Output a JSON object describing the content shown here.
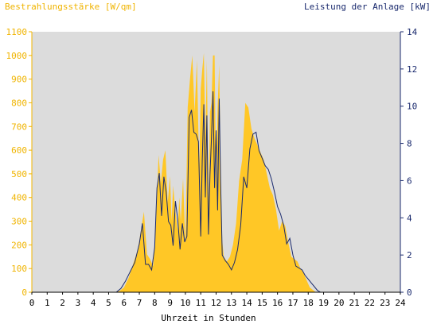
{
  "chart_data": {
    "type": "area",
    "left_axis_label": "Bestrahlungsstärke [W/qm]",
    "right_axis_label": "Leistung der Anlage [kW]",
    "xlabel": "Uhrzeit in Stunden",
    "x_ticks": [
      "0",
      "1",
      "2",
      "3",
      "4",
      "5",
      "6",
      "7",
      "8",
      "9",
      "10",
      "11",
      "12",
      "13",
      "14",
      "15",
      "16",
      "17",
      "18",
      "19",
      "20",
      "21",
      "22",
      "23",
      "24"
    ],
    "left_ticks": [
      "0",
      "100",
      "200",
      "300",
      "400",
      "500",
      "600",
      "700",
      "800",
      "900",
      "1000",
      "1100"
    ],
    "right_ticks": [
      "0",
      "2",
      "4",
      "6",
      "8",
      "10",
      "12",
      "14"
    ],
    "xlim": [
      0,
      24
    ],
    "ylim_left": [
      0,
      1100
    ],
    "ylim_right": [
      0,
      14
    ],
    "grid": false,
    "colors": {
      "plot_background": "#dcdcdc",
      "irradiance_fill": "#ffc726",
      "power_line": "#1a2a6e",
      "left_axis": "#f0b400",
      "right_axis": "#1a2a6e"
    },
    "series": [
      {
        "name": "Bestrahlungsstärke [W/qm]",
        "axis": "left",
        "style": "area",
        "x": [
          0,
          5.4,
          5.7,
          6.0,
          6.3,
          6.6,
          6.9,
          7.1,
          7.3,
          7.5,
          7.7,
          7.9,
          8.1,
          8.25,
          8.4,
          8.55,
          8.7,
          8.85,
          9.0,
          9.1,
          9.2,
          9.35,
          9.5,
          9.6,
          9.7,
          9.85,
          10.0,
          10.15,
          10.3,
          10.45,
          10.6,
          10.75,
          10.9,
          11.0,
          11.1,
          11.2,
          11.3,
          11.4,
          11.5,
          11.6,
          11.7,
          11.8,
          11.9,
          12.0,
          12.1,
          12.2,
          12.3,
          12.4,
          12.5,
          12.7,
          12.9,
          13.1,
          13.3,
          13.5,
          13.7,
          13.9,
          14.1,
          14.3,
          14.5,
          14.7,
          14.9,
          15.1,
          15.3,
          15.5,
          15.7,
          15.9,
          16.1,
          16.3,
          16.5,
          16.7,
          16.9,
          17.1,
          17.3,
          17.5,
          17.7,
          17.9,
          18.1,
          18.3,
          18.5,
          18.7,
          18.9,
          19.1,
          19.3,
          19.5,
          19.7,
          19.9,
          20.1,
          20.3,
          20.5,
          24
        ],
        "y": [
          0,
          0,
          5,
          20,
          60,
          120,
          180,
          260,
          340,
          160,
          140,
          110,
          320,
          580,
          460,
          560,
          600,
          380,
          490,
          300,
          450,
          340,
          260,
          400,
          300,
          480,
          200,
          780,
          900,
          1000,
          760,
          980,
          500,
          860,
          940,
          1010,
          650,
          980,
          360,
          760,
          800,
          1000,
          1000,
          450,
          780,
          960,
          500,
          220,
          150,
          130,
          150,
          200,
          290,
          470,
          560,
          800,
          780,
          690,
          650,
          620,
          590,
          560,
          500,
          440,
          410,
          350,
          260,
          300,
          280,
          210,
          150,
          140,
          130,
          100,
          80,
          50,
          20,
          10,
          0,
          0,
          0,
          0,
          0,
          0,
          0,
          0,
          0,
          0,
          0,
          0
        ]
      },
      {
        "name": "Leistung der Anlage [kW]",
        "axis": "right",
        "style": "line",
        "x": [
          0,
          5.5,
          5.8,
          6.1,
          6.4,
          6.7,
          7.0,
          7.2,
          7.4,
          7.6,
          7.8,
          8.0,
          8.15,
          8.3,
          8.45,
          8.6,
          8.75,
          8.9,
          9.05,
          9.2,
          9.35,
          9.5,
          9.65,
          9.8,
          9.95,
          10.1,
          10.25,
          10.4,
          10.55,
          10.7,
          10.85,
          11.0,
          11.1,
          11.2,
          11.3,
          11.4,
          11.5,
          11.6,
          11.7,
          11.8,
          11.9,
          12.0,
          12.1,
          12.2,
          12.3,
          12.4,
          12.6,
          12.8,
          13.0,
          13.2,
          13.4,
          13.6,
          13.8,
          14.0,
          14.2,
          14.4,
          14.6,
          14.8,
          15.0,
          15.2,
          15.4,
          15.6,
          15.8,
          16.0,
          16.2,
          16.4,
          16.6,
          16.8,
          17.0,
          17.2,
          17.4,
          17.6,
          17.8,
          18.0,
          18.2,
          18.4,
          18.6,
          18.8,
          19.0,
          19.2,
          19.4,
          19.6,
          19.8,
          20.0,
          20.2,
          20.4,
          24
        ],
        "y": [
          0,
          0,
          0.2,
          0.6,
          1.1,
          1.6,
          2.6,
          3.7,
          1.5,
          1.5,
          1.2,
          2.4,
          5.6,
          6.4,
          4.1,
          6.2,
          5.4,
          3.8,
          3.6,
          2.5,
          4.9,
          3.9,
          2.3,
          3.7,
          2.7,
          3.0,
          9.4,
          9.8,
          8.6,
          8.5,
          8.1,
          3.0,
          7.1,
          10.1,
          5.1,
          9.5,
          3.1,
          6.3,
          8.3,
          10.8,
          5.6,
          8.7,
          4.4,
          10.4,
          5.7,
          2.0,
          1.7,
          1.5,
          1.2,
          1.6,
          2.3,
          3.6,
          6.2,
          5.6,
          7.7,
          8.5,
          8.6,
          7.6,
          7.2,
          6.8,
          6.6,
          6.1,
          5.4,
          4.6,
          4.2,
          3.6,
          2.6,
          2.9,
          2.0,
          1.4,
          1.3,
          1.2,
          0.9,
          0.7,
          0.5,
          0.3,
          0.1,
          0,
          0,
          0,
          0,
          0,
          0,
          0,
          0,
          0,
          0
        ]
      }
    ]
  }
}
